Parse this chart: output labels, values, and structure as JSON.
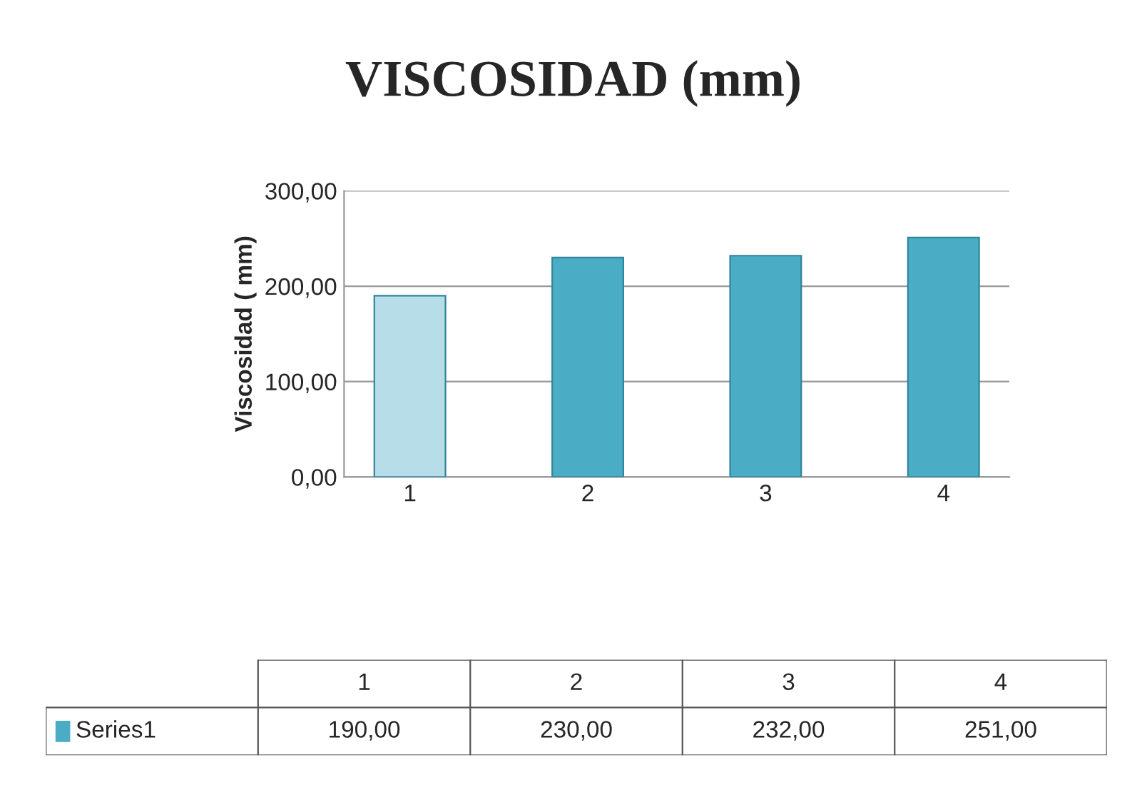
{
  "chart_data": {
    "type": "bar",
    "title": "VISCOSIDAD (mm)",
    "ylabel": "Viscosidad ( mm)",
    "categories": [
      "1",
      "2",
      "3",
      "4"
    ],
    "series": [
      {
        "name": "Series1",
        "color": "#4bacc6",
        "values": [
          190,
          230,
          232,
          251
        ],
        "value_labels": [
          "190,00",
          "230,00",
          "232,00",
          "251,00"
        ],
        "colors": [
          "#b7dde8",
          "#4bacc6",
          "#4bacc6",
          "#4bacc6"
        ]
      }
    ],
    "ylim": [
      0,
      300
    ],
    "yticks": [
      {
        "value": 0,
        "label": "0,00"
      },
      {
        "value": 100,
        "label": "100,00"
      },
      {
        "value": 200,
        "label": "200,00"
      },
      {
        "value": 300,
        "label": "300,00"
      }
    ],
    "grid": "y",
    "legend": "bottom"
  }
}
